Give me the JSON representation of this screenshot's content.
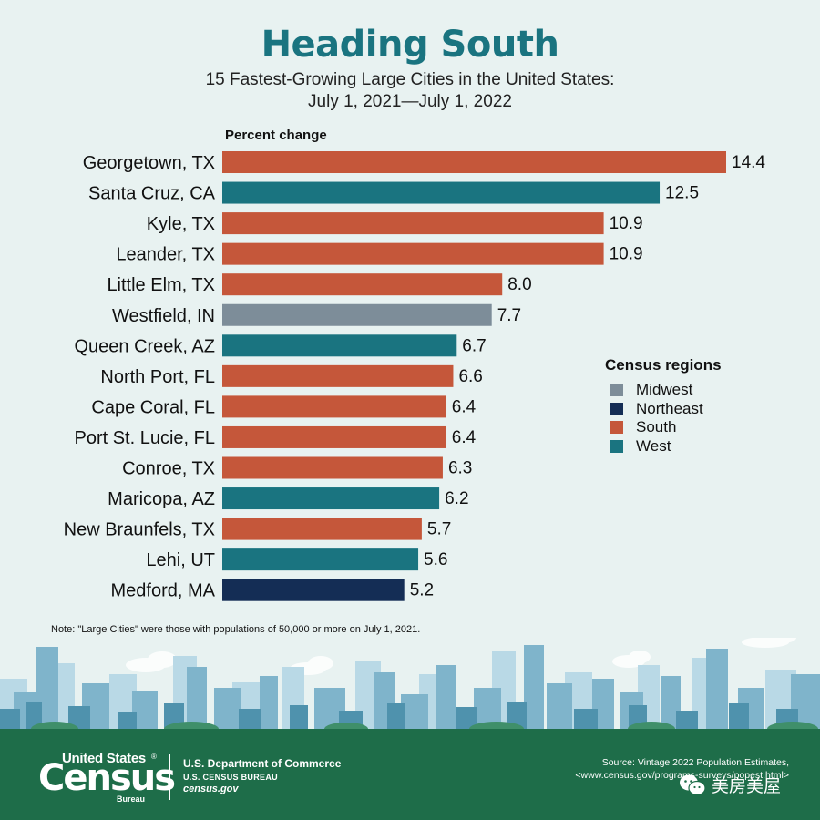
{
  "header": {
    "title": "Heading South",
    "subtitle_line1": "15 Fastest-Growing Large Cities in the United States:",
    "subtitle_line2": "July 1, 2021—July 1, 2022"
  },
  "chart_data": {
    "type": "bar",
    "orientation": "horizontal",
    "title": "Heading South",
    "subtitle": "15 Fastest-Growing Large Cities in the United States: July 1, 2021—July 1, 2022",
    "xlabel": "Percent change",
    "ylabel": "",
    "xlim": [
      0,
      14.4
    ],
    "grid": false,
    "legend_placement": "right",
    "categories": [
      "Georgetown, TX",
      "Santa Cruz, CA",
      "Kyle, TX",
      "Leander, TX",
      "Little Elm, TX",
      "Westfield, IN",
      "Queen Creek, AZ",
      "North Port, FL",
      "Cape Coral, FL",
      "Port St. Lucie, FL",
      "Conroe, TX",
      "Maricopa, AZ",
      "New Braunfels, TX",
      "Lehi, UT",
      "Medford, MA"
    ],
    "values": [
      14.4,
      12.5,
      10.9,
      10.9,
      8.0,
      7.7,
      6.7,
      6.6,
      6.4,
      6.4,
      6.3,
      6.2,
      5.7,
      5.6,
      5.2
    ],
    "value_labels": [
      "14.4",
      "12.5",
      "10.9",
      "10.9",
      "8.0",
      "7.7",
      "6.7",
      "6.6",
      "6.4",
      "6.4",
      "6.3",
      "6.2",
      "5.7",
      "5.6",
      "5.2"
    ],
    "regions": [
      "South",
      "West",
      "South",
      "South",
      "South",
      "Midwest",
      "West",
      "South",
      "South",
      "South",
      "South",
      "West",
      "South",
      "West",
      "Northeast"
    ],
    "legend": {
      "title": "Census regions",
      "entries": [
        {
          "name": "Midwest",
          "color": "#7d8d99"
        },
        {
          "name": "Northeast",
          "color": "#142d55"
        },
        {
          "name": "South",
          "color": "#c5573a"
        },
        {
          "name": "West",
          "color": "#1a7480"
        }
      ]
    }
  },
  "note": "Note: \"Large Cities\" were those with populations of 50,000 or more on July 1, 2021.",
  "footer": {
    "logo_top": "United States",
    "logo_reg": "®",
    "logo_main": "Census",
    "logo_bureau": "Bureau",
    "dept": "U.S. Department of Commerce",
    "bureau_line": "U.S. CENSUS BUREAU",
    "site": "census.gov",
    "source_line1": "Source: Vintage 2022 Population Estimates,",
    "source_line2": "<www.census.gov/programs-surveys/popest.html>",
    "watermark": "美房美屋"
  },
  "colors": {
    "background": "#e8f2f1",
    "title": "#1a7480",
    "footer": "#1e6d49"
  }
}
